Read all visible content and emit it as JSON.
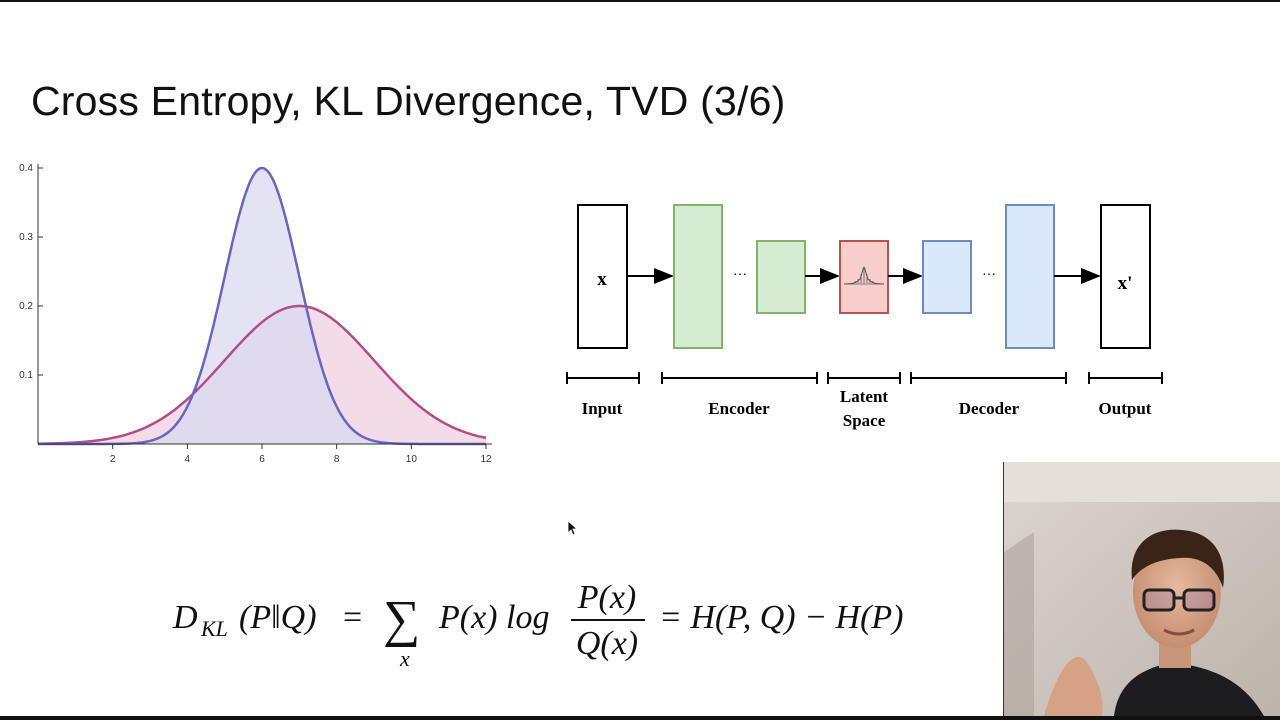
{
  "slide": {
    "title": "Cross Entropy, KL Divergence, TVD (3/6)"
  },
  "chart_data": {
    "type": "area",
    "x_ticks": [
      2,
      4,
      6,
      8,
      10,
      12
    ],
    "y_ticks": [
      "0.1",
      "0.2",
      "0.3",
      "0.4"
    ],
    "xlim": [
      0,
      12
    ],
    "ylim": [
      0,
      0.4
    ],
    "grid": false,
    "legend": "none",
    "series": [
      {
        "distribution": "normal",
        "mean": 6,
        "std": 1,
        "peak": 0.4,
        "color": "#6666c4",
        "fill": "#d9d9f0"
      },
      {
        "distribution": "normal",
        "mean": 7,
        "std": 2,
        "peak": 0.2,
        "color": "#b34d86",
        "fill": "#efcfe0"
      }
    ]
  },
  "diagram": {
    "node_x": "x",
    "node_x_prime": "x'",
    "ellipsis": "···",
    "labels": {
      "input": "Input",
      "encoder": "Encoder",
      "latent_line1": "Latent",
      "latent_line2": "Space",
      "decoder": "Decoder",
      "output": "Output"
    },
    "colors": {
      "encoder_fill": "#d6ecd2",
      "encoder_stroke": "#82b366",
      "latent_fill": "#f8cecc",
      "latent_stroke": "#b85450",
      "decoder_fill": "#dae8fc",
      "decoder_stroke": "#6c8ebf"
    }
  },
  "formula": {
    "lhs_D": "D",
    "lhs_sub": "KL",
    "lhs_args": "(P‖Q)",
    "eq1": "=",
    "sum": "∑",
    "sum_sub": "x",
    "term": "P(x) log",
    "numerator": "P(x)",
    "denominator": "Q(x)",
    "eq2": "= H(P, Q) − H(P)"
  },
  "webcam": {
    "icon": "webcam-presenter-icon"
  }
}
